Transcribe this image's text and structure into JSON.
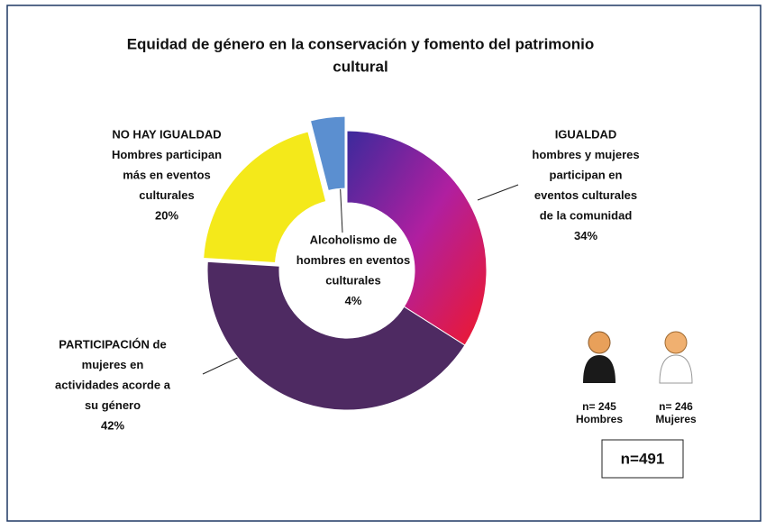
{
  "chart_data": {
    "type": "pie",
    "title": [
      "Equidad de género en la conservación y fomento del patrimonio",
      "cultural"
    ],
    "categories": [
      [
        "IGUALDAD",
        "hombres y mujeres",
        "participan en",
        "eventos culturales",
        "de la comunidad"
      ],
      [
        "PARTICIPACIÓN de",
        "mujeres  en",
        "actividades acorde a",
        "su género"
      ],
      [
        "NO HAY IGUALDAD",
        "Hombres participan",
        "más en eventos",
        "culturales"
      ],
      [
        "Alcoholismo de",
        "hombres en eventos",
        "culturales"
      ]
    ],
    "values": [
      34,
      42,
      20,
      4
    ],
    "value_labels": [
      "34%",
      "42%",
      "20%",
      "4%"
    ],
    "colors": [
      "#a3208c",
      "#4e2a62",
      "#f4e91a",
      "#5b8fd0"
    ],
    "annotations": {
      "men": [
        "n= 245",
        "Hombres"
      ],
      "women": [
        "n= 246",
        "Mujeres"
      ],
      "total": "n=491"
    }
  }
}
